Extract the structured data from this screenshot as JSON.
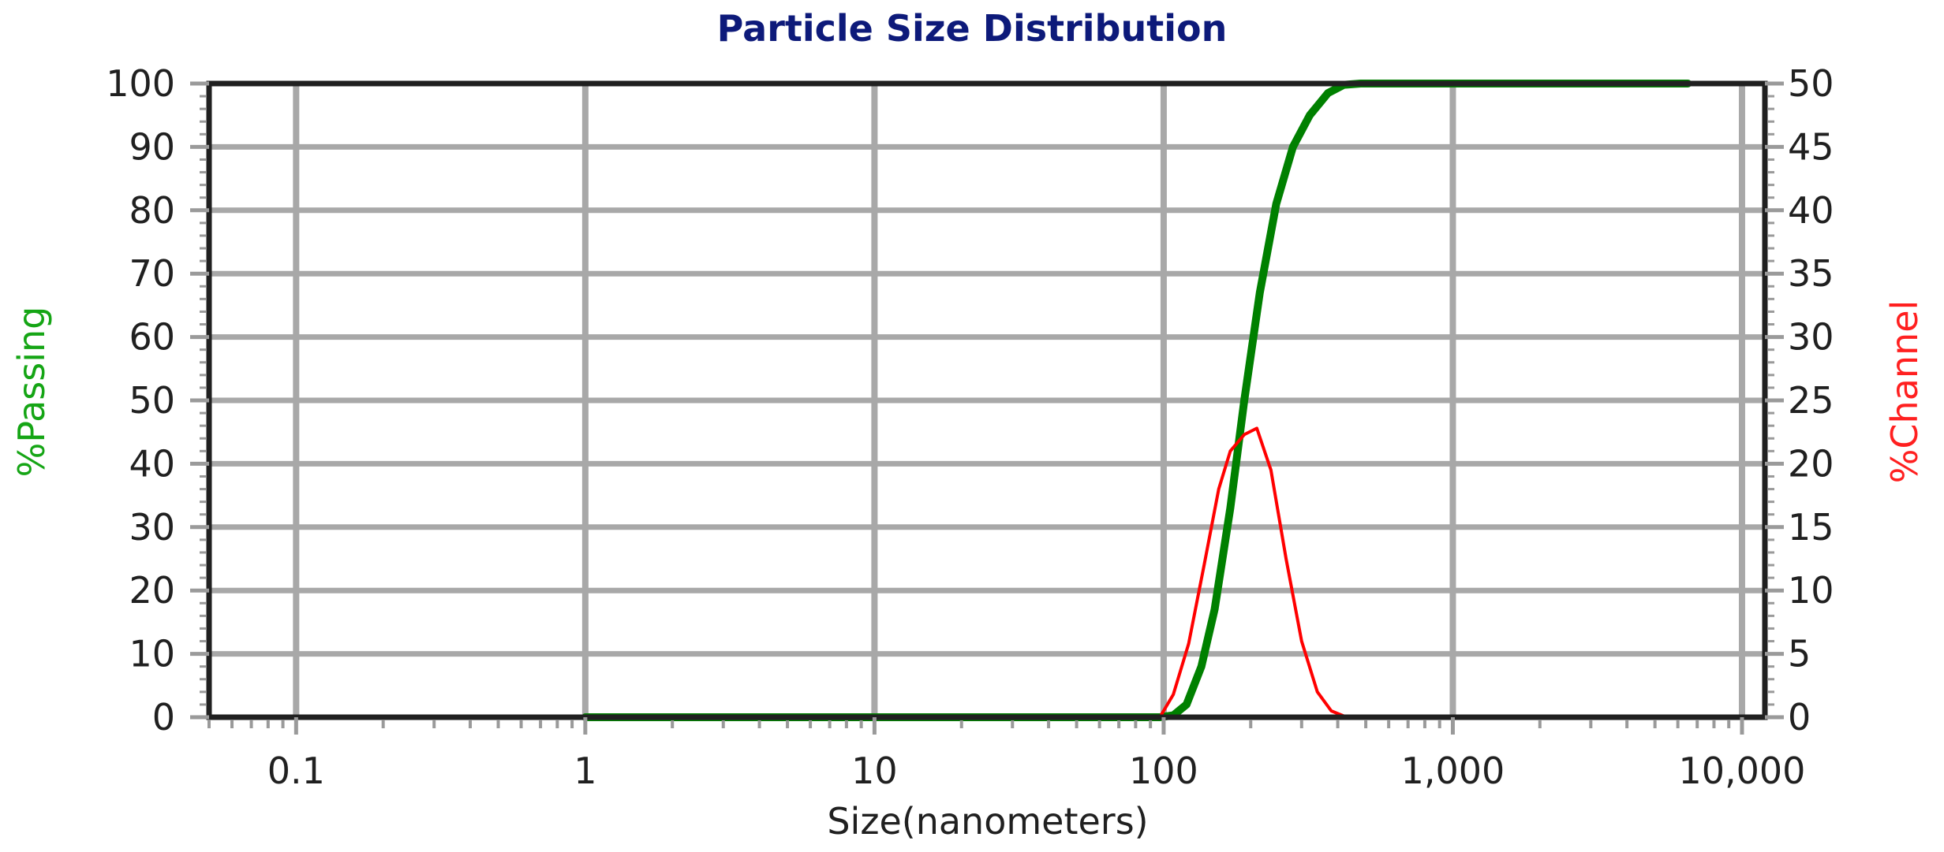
{
  "chart_data": {
    "type": "line",
    "title": "Particle Size Distribution",
    "xlabel": "Size(nanometers)",
    "ylabel_left": "%Passing",
    "ylabel_right": "%Channel",
    "x_scale": "log",
    "xlim": [
      0.05,
      12000
    ],
    "ylim_left": [
      0,
      100
    ],
    "ylim_right": [
      0,
      50
    ],
    "x_ticks": [
      0.1,
      1,
      10,
      100,
      1000,
      10000
    ],
    "x_tick_labels": [
      "0.1",
      "1",
      "10",
      "100",
      "1,000",
      "10,000"
    ],
    "y_left_ticks": [
      0,
      10,
      20,
      30,
      40,
      50,
      60,
      70,
      80,
      90,
      100
    ],
    "y_right_ticks": [
      0,
      5,
      10,
      15,
      20,
      25,
      30,
      35,
      40,
      45,
      50
    ],
    "grid": true,
    "series": [
      {
        "name": "%Passing",
        "axis": "left",
        "color": "#008000",
        "points": [
          [
            1,
            0
          ],
          [
            97,
            0
          ],
          [
            108,
            0.3
          ],
          [
            120,
            2
          ],
          [
            135,
            8
          ],
          [
            150,
            17
          ],
          [
            170,
            33
          ],
          [
            190,
            50
          ],
          [
            215,
            67
          ],
          [
            245,
            81
          ],
          [
            280,
            90
          ],
          [
            320,
            95
          ],
          [
            370,
            98.5
          ],
          [
            420,
            99.8
          ],
          [
            480,
            100
          ],
          [
            1000,
            100
          ],
          [
            6500,
            100
          ]
        ]
      },
      {
        "name": "%Channel",
        "axis": "right",
        "color": "#ff0000",
        "points": [
          [
            0.85,
            0
          ],
          [
            1,
            0
          ],
          [
            97,
            0
          ],
          [
            108,
            1.8
          ],
          [
            122,
            5.8
          ],
          [
            138,
            12
          ],
          [
            155,
            18
          ],
          [
            170,
            21
          ],
          [
            190,
            22.3
          ],
          [
            210,
            22.8
          ],
          [
            235,
            19.5
          ],
          [
            265,
            12.5
          ],
          [
            300,
            6
          ],
          [
            340,
            2
          ],
          [
            380,
            0.5
          ],
          [
            430,
            0
          ],
          [
            600,
            0
          ],
          [
            6000,
            0
          ]
        ]
      }
    ]
  },
  "colors": {
    "title": "#0d1a7a",
    "left_axis_label": "#15a515",
    "right_axis_label": "#ff2020",
    "grid": "#a8a8a8",
    "frame": "#202020",
    "ticks": "#9a9a9a"
  }
}
